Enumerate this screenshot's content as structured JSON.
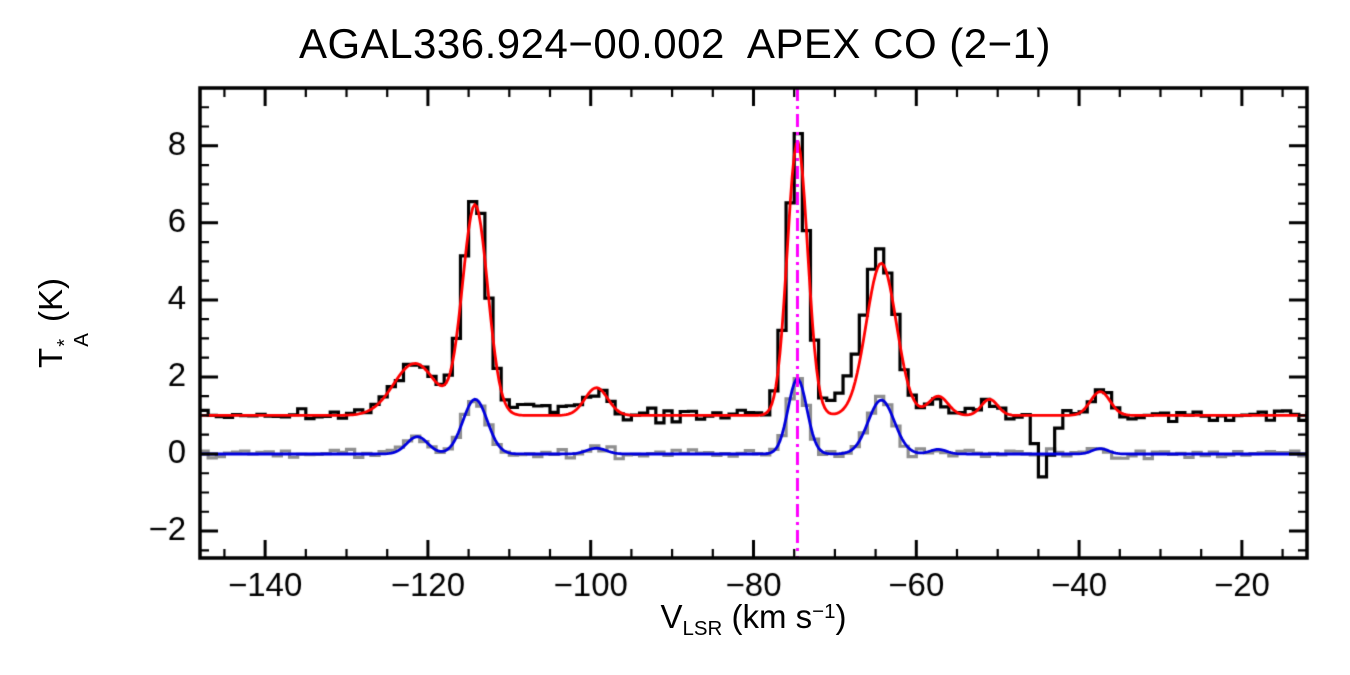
{
  "chart_data": {
    "type": "line",
    "subtype": "radio spectrum: histogram traces with smooth Gaussian model fits and a vertical systemic-velocity marker",
    "title": "AGAL336.924−00.002  APEX CO (2−1)",
    "xlabel": {
      "base": "V",
      "sub": "LSR",
      "unit_open": " (km s",
      "exp": "−1",
      "unit_close": ")"
    },
    "ylabel": {
      "base": "T",
      "sup": "*",
      "sub": "A",
      "unit": " (K)"
    },
    "xlim": [
      -148,
      -12
    ],
    "ylim": [
      -2.7,
      9.5
    ],
    "xticks": [
      -140,
      -120,
      -100,
      -80,
      -60,
      -40,
      -20
    ],
    "yticks": [
      -2,
      0,
      2,
      4,
      6,
      8
    ],
    "x_minor_step": 5,
    "y_minor_step": 0.5,
    "background": "#ffffff",
    "axis_color": "#000000",
    "vline": {
      "x": -74.6,
      "color": "#ff00ff",
      "style": "dash-dot"
    },
    "series": [
      {
        "id": "spectrum-secondary",
        "label": "second (isotopologue) spectrum, baseline 0 K",
        "render": "histogram",
        "color": "#8f8f8f",
        "baseline": 0.0,
        "bin_width": 1.0,
        "noise_sigma": 0.065,
        "components": [
          {
            "c": -121.3,
            "a": 0.45,
            "s": 1.3
          },
          {
            "c": -114.2,
            "a": 1.42,
            "s": 1.5
          },
          {
            "c": -99.3,
            "a": 0.15,
            "s": 1.2
          },
          {
            "c": -74.6,
            "a": 1.95,
            "s": 1.15
          },
          {
            "c": -64.3,
            "a": 1.4,
            "s": 1.6
          },
          {
            "c": -57.3,
            "a": 0.12,
            "s": 1.0
          },
          {
            "c": -37.4,
            "a": 0.14,
            "s": 1.0
          }
        ]
      },
      {
        "id": "spectrum-main",
        "label": "CO (2−1) spectrum, offset +1 K",
        "render": "histogram",
        "color": "#000000",
        "baseline": 1.0,
        "bin_width": 1.0,
        "noise_sigma": 0.08,
        "components": [
          {
            "c": -121.6,
            "a": 1.35,
            "s": 2.6
          },
          {
            "c": -114.2,
            "a": 5.45,
            "s": 1.55
          },
          {
            "c": -114.1,
            "a": 0.3,
            "s": 1.0
          },
          {
            "c": -107.0,
            "a": 0.3,
            "s": 2.5
          },
          {
            "c": -99.3,
            "a": 0.72,
            "s": 1.4
          },
          {
            "c": -74.6,
            "a": 7.1,
            "s": 1.25
          },
          {
            "c": -67.5,
            "a": 0.75,
            "s": 2.2
          },
          {
            "c": -64.3,
            "a": 3.95,
            "s": 1.85
          },
          {
            "c": -57.3,
            "a": 0.5,
            "s": 1.2
          },
          {
            "c": -51.0,
            "a": 0.42,
            "s": 1.0
          },
          {
            "c": -44.3,
            "a": -1.75,
            "s": 0.85
          },
          {
            "c": -37.4,
            "a": 0.62,
            "s": 1.2
          }
        ]
      },
      {
        "id": "fit-secondary",
        "label": "Gaussian fit to second spectrum",
        "render": "curve",
        "color": "#0000dd",
        "baseline": 0.0,
        "components": [
          {
            "c": -121.3,
            "a": 0.45,
            "s": 1.3
          },
          {
            "c": -114.2,
            "a": 1.42,
            "s": 1.5
          },
          {
            "c": -99.3,
            "a": 0.15,
            "s": 1.2
          },
          {
            "c": -74.6,
            "a": 1.95,
            "s": 1.15
          },
          {
            "c": -64.3,
            "a": 1.4,
            "s": 1.6
          },
          {
            "c": -57.3,
            "a": 0.12,
            "s": 1.0
          },
          {
            "c": -37.4,
            "a": 0.14,
            "s": 1.0
          }
        ]
      },
      {
        "id": "fit-main",
        "label": "Gaussian fit to CO (2−1) spectrum",
        "render": "curve",
        "color": "#ff0000",
        "baseline": 1.0,
        "components": [
          {
            "c": -121.6,
            "a": 1.35,
            "s": 2.6
          },
          {
            "c": -114.2,
            "a": 5.45,
            "s": 1.55
          },
          {
            "c": -99.3,
            "a": 0.72,
            "s": 1.4
          },
          {
            "c": -74.6,
            "a": 7.1,
            "s": 1.25
          },
          {
            "c": -64.3,
            "a": 3.95,
            "s": 1.85
          },
          {
            "c": -57.3,
            "a": 0.5,
            "s": 1.2
          },
          {
            "c": -51.0,
            "a": 0.42,
            "s": 1.0
          },
          {
            "c": -37.4,
            "a": 0.62,
            "s": 1.2
          }
        ]
      }
    ],
    "peaks_readout_K": [
      {
        "v_kms": -121,
        "T_K": 2.4
      },
      {
        "v_kms": -114,
        "T_K": 6.8
      },
      {
        "v_kms": -99,
        "T_K": 1.7
      },
      {
        "v_kms": -74.5,
        "T_K": 8.1
      },
      {
        "v_kms": -64,
        "T_K": 4.9
      },
      {
        "v_kms": -57,
        "T_K": 1.4
      },
      {
        "v_kms": -51,
        "T_K": 1.3
      },
      {
        "v_kms": -44,
        "T_K": -0.8
      },
      {
        "v_kms": -37,
        "T_K": 1.6
      }
    ]
  }
}
